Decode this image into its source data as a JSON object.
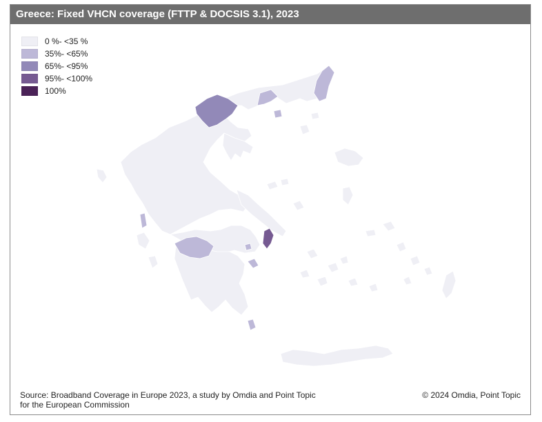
{
  "title": "Greece: Fixed VHCN coverage (FTTP & DOCSIS 3.1), 2023",
  "legend": [
    {
      "label": "0 %- <35 %",
      "color": "#efeff5"
    },
    {
      "label": "35%- <65%",
      "color": "#bdb8d8"
    },
    {
      "label": "65%- <95%",
      "color": "#9289b8"
    },
    {
      "label": "95%- <100%",
      "color": "#765a92"
    },
    {
      "label": "100%",
      "color": "#4a2257"
    }
  ],
  "footer": {
    "source_line1": "Source: Broadband Coverage in Europe 2023, a study by Omdia and Point Topic",
    "source_line2": "for the European Commission",
    "copyright": "© 2024 Omdia, Point Topic"
  },
  "map_regions": {
    "base": "0 %- <35 %",
    "evros_xanthi": "35%- <65%",
    "drama_area": "35%- <65%",
    "thessaloniki": "65%- <95%",
    "achaia": "35%- <65%",
    "lefkada": "35%- <65%",
    "attica": "95%- <100%",
    "piraeus_islands": "35%- <65%",
    "kythira_area": "35%- <65%"
  }
}
